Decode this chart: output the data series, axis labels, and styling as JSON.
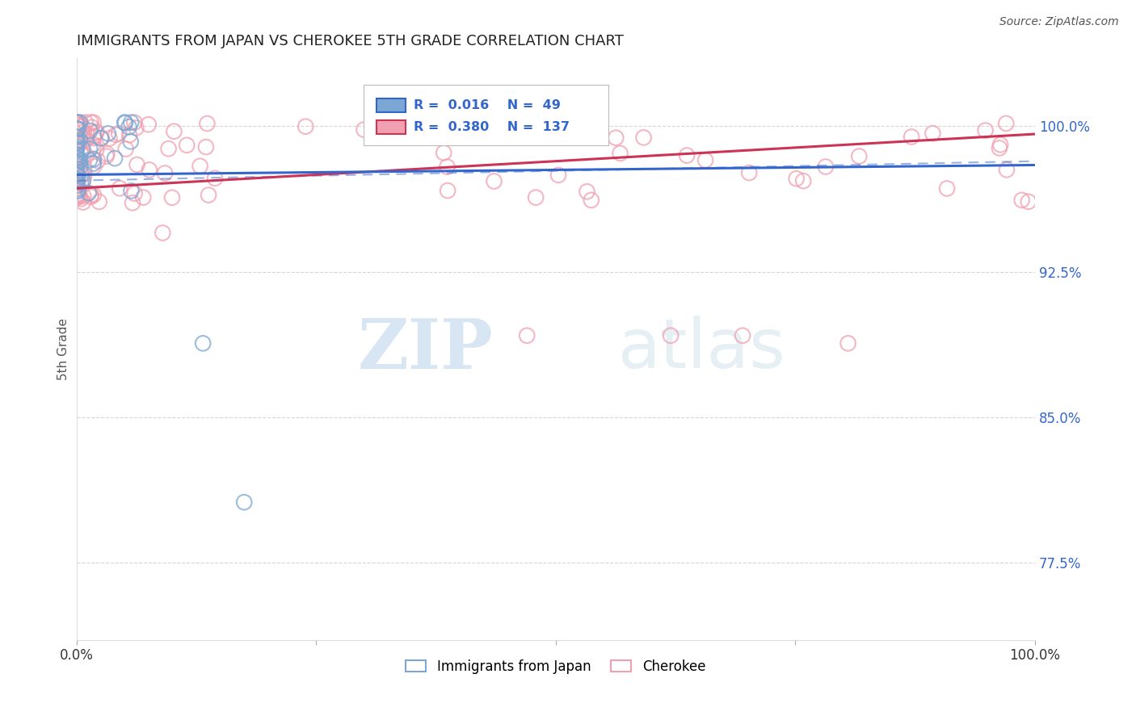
{
  "title": "IMMIGRANTS FROM JAPAN VS CHEROKEE 5TH GRADE CORRELATION CHART",
  "source": "Source: ZipAtlas.com",
  "ylabel": "5th Grade",
  "xmin": 0.0,
  "xmax": 1.0,
  "ymin": 0.735,
  "ymax": 1.035,
  "japan_R": 0.016,
  "japan_N": 49,
  "cherokee_R": 0.38,
  "cherokee_N": 137,
  "japan_color": "#7ba7d4",
  "cherokee_color": "#f0a0b0",
  "japan_line_color": "#3366cc",
  "cherokee_line_color": "#cc3355",
  "watermark_zip": "ZIP",
  "watermark_atlas": "atlas",
  "background_color": "#ffffff",
  "grid_color": "#cccccc",
  "ytick_vals": [
    0.775,
    0.85,
    0.925,
    1.0
  ],
  "ytick_labels": [
    "77.5%",
    "85.0%",
    "92.5%",
    "100.0%"
  ]
}
